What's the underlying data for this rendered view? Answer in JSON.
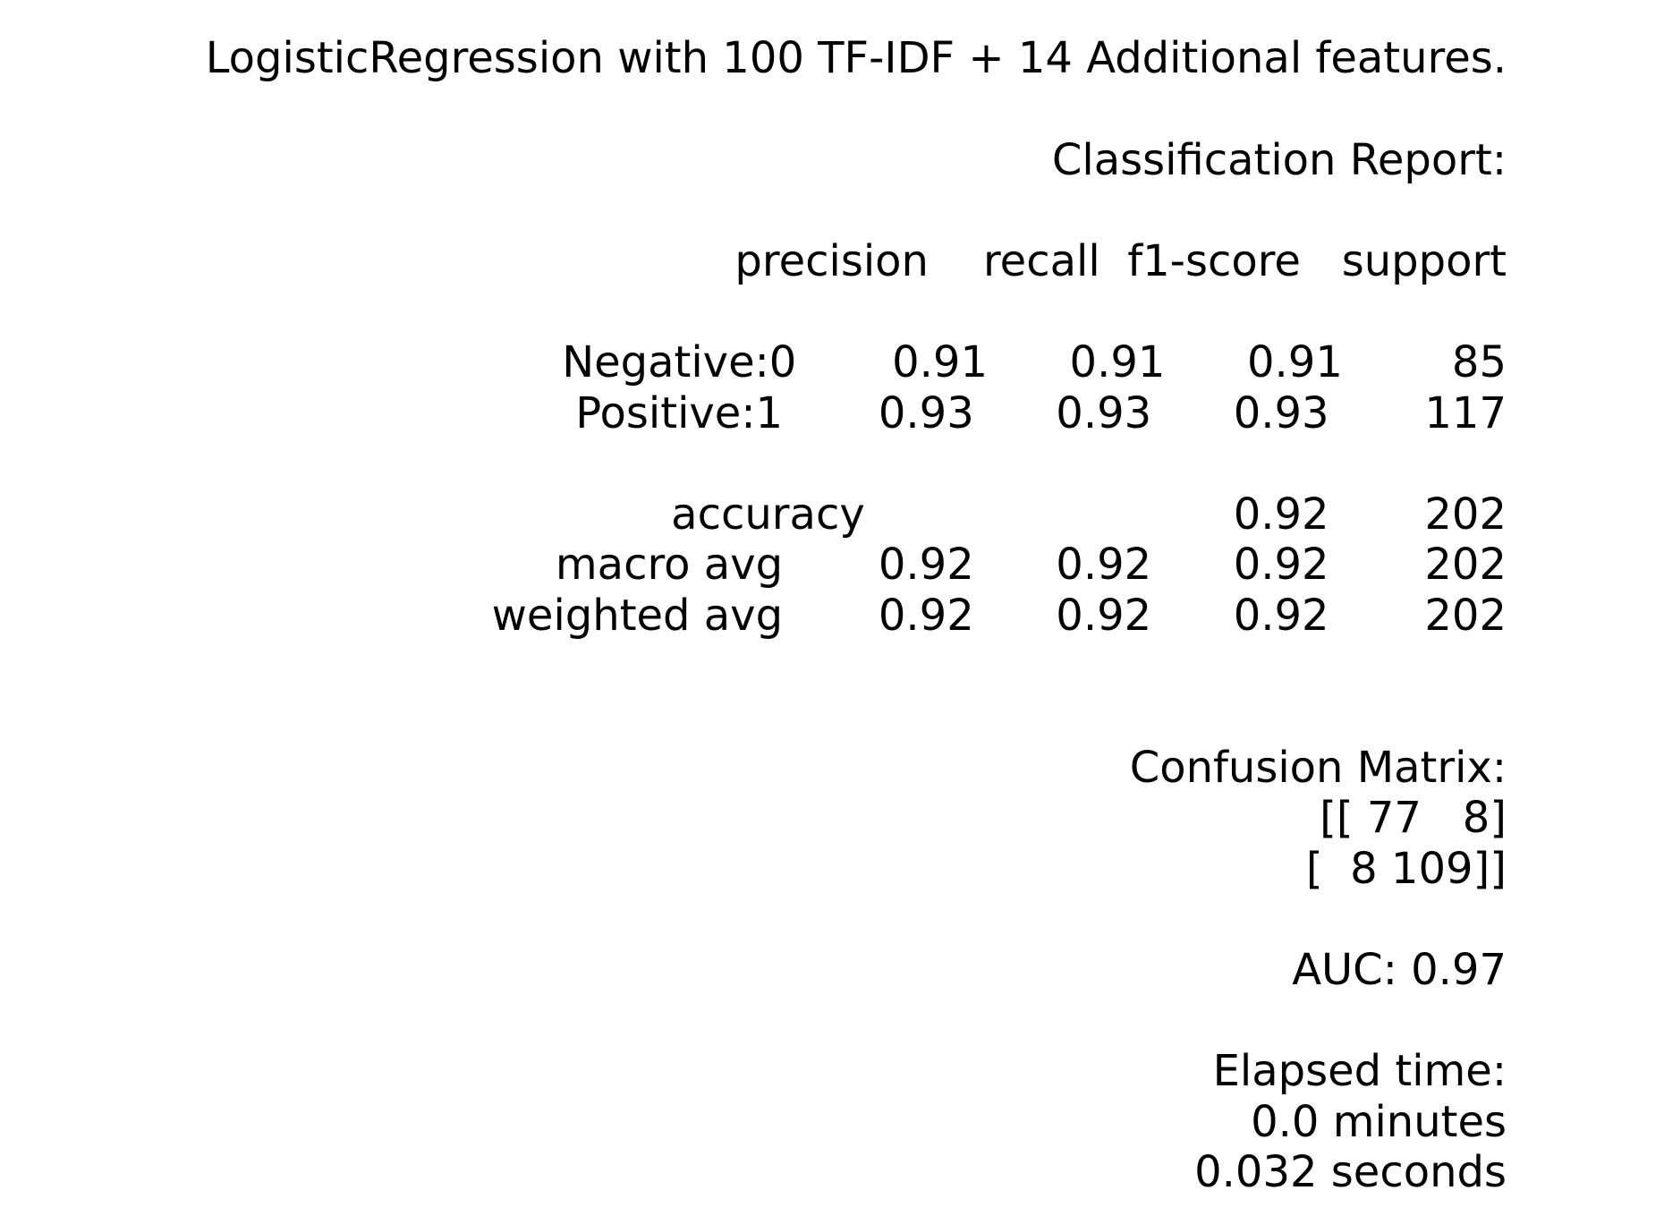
{
  "report": {
    "title": "LogisticRegression with 100 TF-IDF + 14 Additional features.",
    "classification_heading": "Classification Report:",
    "table": {
      "header": "precision    recall  f1-score   support",
      "rows": [
        "Negative:0       0.91      0.91      0.91        85",
        "Positive:1       0.93      0.93      0.93       117",
        "accuracy                           0.92       202",
        "macro avg       0.92      0.92      0.92       202",
        "weighted avg       0.92      0.92      0.92       202"
      ]
    },
    "confusion_heading": "Confusion Matrix:",
    "confusion_rows": [
      "[[ 77   8]",
      "[  8 109]]"
    ],
    "auc": "AUC: 0.97",
    "elapsed_heading": "Elapsed time:",
    "elapsed_minutes": "0.0 minutes",
    "elapsed_seconds": "0.032 seconds"
  }
}
